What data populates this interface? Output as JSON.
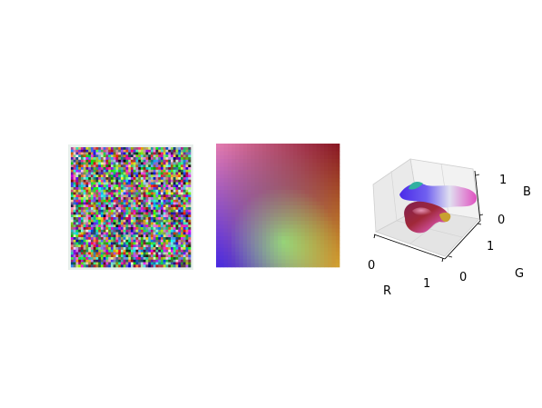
{
  "figure": {
    "background": "#ffffff"
  },
  "chart_data": [
    {
      "type": "heatmap",
      "description_key": "random-pixels",
      "grid": [
        48,
        48
      ],
      "axes_visible": false,
      "border_color": "#e8f0ec"
    },
    {
      "type": "heatmap",
      "description_key": "corner-gradient",
      "grid": [
        32,
        32
      ],
      "axes_visible": false,
      "corner_colors": {
        "top_left": "#e07ab0",
        "top_right": "#8a1a24",
        "bottom_left": "#4a2ae0",
        "bottom_right": "#d0a030"
      }
    },
    {
      "type": "scatter",
      "projection": "3d",
      "xlabel": "R",
      "ylabel": "G",
      "zlabel": "B",
      "x_ticks": [
        "0",
        "1"
      ],
      "y_ticks": [
        "0",
        "1"
      ],
      "z_ticks": [
        "0",
        "1"
      ],
      "xlim": [
        0,
        1
      ],
      "ylim": [
        0,
        1
      ],
      "zlim": [
        0,
        1
      ],
      "pane_color": "#f2f2f2",
      "grid": true
    }
  ]
}
